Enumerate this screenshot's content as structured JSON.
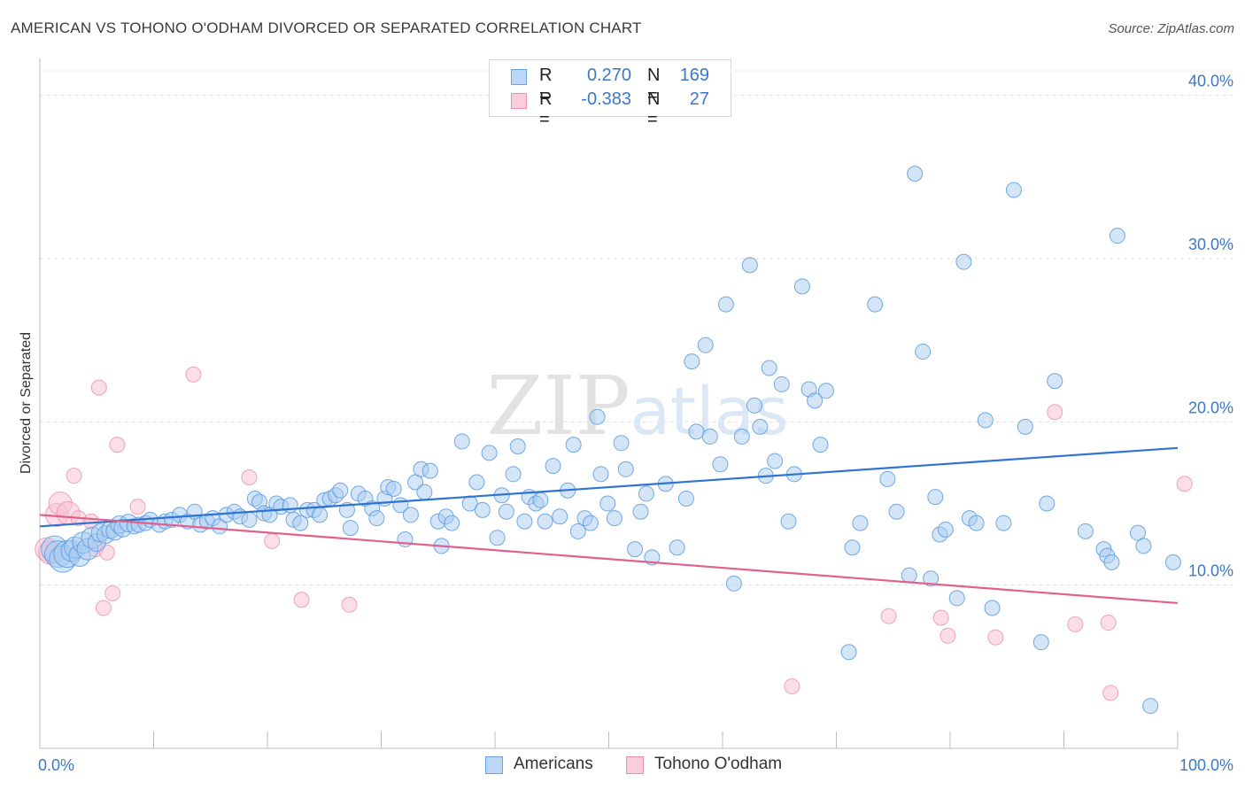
{
  "title": "AMERICAN VS TOHONO O'ODHAM DIVORCED OR SEPARATED CORRELATION CHART",
  "source": "Source: ZipAtlas.com",
  "watermark": "ZIPatlas",
  "legend": {
    "rows": [
      {
        "r_label": "R =",
        "r_value": "0.270",
        "n_label": "N =",
        "n_value": "169",
        "color": "#9ec5f0"
      },
      {
        "r_label": "R =",
        "r_value": "-0.383",
        "n_label": "N =",
        "n_value": "27",
        "color": "#f5b8cc"
      }
    ]
  },
  "bottom_legend": {
    "americans": "Americans",
    "tohono": "Tohono O'odham"
  },
  "chart_data": {
    "type": "scatter",
    "title": "AMERICAN VS TOHONO O'ODHAM DIVORCED OR SEPARATED CORRELATION CHART",
    "ylabel": "Divorced or Separated",
    "xlabel": "",
    "x_tick_labels": [
      "0.0%",
      "100.0%"
    ],
    "y_tick_labels": [
      "10.0%",
      "20.0%",
      "30.0%",
      "40.0%"
    ],
    "y_ticks": [
      10,
      20,
      30,
      40
    ],
    "xlim": [
      0,
      100
    ],
    "ylim": [
      0,
      41.5
    ],
    "grid": true,
    "legend_position": "top-center",
    "colors": {
      "americans": "#5b9be0",
      "americans_fill": "#a9cbf2",
      "americans_line": "#2e74d0",
      "tohono": "#ec8fb0",
      "tohono_fill": "#f7c3d4",
      "tohono_line": "#e0608e"
    },
    "series": [
      {
        "name": "Americans",
        "trend": [
          [
            0,
            13.6
          ],
          [
            100,
            18.4
          ]
        ],
        "points": [
          [
            1.3,
            12.2
          ],
          [
            1.6,
            11.9
          ],
          [
            2,
            11.6
          ],
          [
            2.4,
            11.9
          ],
          [
            2.8,
            12.1
          ],
          [
            3.1,
            12.3
          ],
          [
            3.5,
            11.8
          ],
          [
            3.8,
            12.6
          ],
          [
            4.2,
            12.2
          ],
          [
            4.6,
            12.9
          ],
          [
            5,
            12.6
          ],
          [
            5.3,
            13.2
          ],
          [
            5.8,
            13.1
          ],
          [
            6.2,
            13.4
          ],
          [
            6.6,
            13.3
          ],
          [
            7,
            13.7
          ],
          [
            7.3,
            13.5
          ],
          [
            7.8,
            13.8
          ],
          [
            8.3,
            13.6
          ],
          [
            8.7,
            13.7
          ],
          [
            9.3,
            13.8
          ],
          [
            9.7,
            14
          ],
          [
            10.5,
            13.7
          ],
          [
            11,
            13.9
          ],
          [
            11.6,
            14
          ],
          [
            12.3,
            14.3
          ],
          [
            13,
            13.9
          ],
          [
            13.6,
            14.5
          ],
          [
            14.1,
            13.7
          ],
          [
            14.7,
            13.9
          ],
          [
            15.2,
            14.1
          ],
          [
            15.8,
            13.6
          ],
          [
            16.4,
            14.3
          ],
          [
            17.1,
            14.5
          ],
          [
            17.6,
            14.2
          ],
          [
            18.4,
            14
          ],
          [
            18.9,
            15.3
          ],
          [
            19.3,
            15.1
          ],
          [
            19.7,
            14.4
          ],
          [
            20.2,
            14.3
          ],
          [
            20.8,
            15
          ],
          [
            21.2,
            14.8
          ],
          [
            22,
            14.9
          ],
          [
            22.3,
            14
          ],
          [
            22.9,
            13.8
          ],
          [
            23.5,
            14.6
          ],
          [
            24.1,
            14.6
          ],
          [
            24.6,
            14.3
          ],
          [
            25,
            15.2
          ],
          [
            25.5,
            15.3
          ],
          [
            26,
            15.5
          ],
          [
            26.4,
            15.8
          ],
          [
            27,
            14.6
          ],
          [
            27.3,
            13.5
          ],
          [
            28,
            15.6
          ],
          [
            28.6,
            15.3
          ],
          [
            29.2,
            14.7
          ],
          [
            29.6,
            14.1
          ],
          [
            30.3,
            15.3
          ],
          [
            30.6,
            16
          ],
          [
            31.1,
            15.9
          ],
          [
            31.7,
            14.9
          ],
          [
            32.1,
            12.8
          ],
          [
            32.6,
            14.3
          ],
          [
            33,
            16.3
          ],
          [
            33.5,
            17.1
          ],
          [
            33.8,
            15.7
          ],
          [
            34.3,
            17
          ],
          [
            35,
            13.9
          ],
          [
            35.3,
            12.4
          ],
          [
            35.7,
            14.2
          ],
          [
            36.2,
            13.8
          ],
          [
            37.1,
            18.8
          ],
          [
            37.8,
            15
          ],
          [
            38.4,
            16.3
          ],
          [
            38.9,
            14.6
          ],
          [
            39.5,
            18.1
          ],
          [
            40.2,
            12.9
          ],
          [
            40.6,
            15.5
          ],
          [
            41,
            14.5
          ],
          [
            41.6,
            16.8
          ],
          [
            42,
            18.5
          ],
          [
            42.6,
            13.9
          ],
          [
            43,
            15.4
          ],
          [
            43.6,
            15
          ],
          [
            44,
            15.2
          ],
          [
            44.4,
            13.9
          ],
          [
            45.1,
            17.3
          ],
          [
            45.7,
            14.2
          ],
          [
            46.4,
            15.8
          ],
          [
            46.9,
            18.6
          ],
          [
            47.3,
            13.3
          ],
          [
            47.9,
            14.1
          ],
          [
            48.4,
            13.8
          ],
          [
            49,
            20.3
          ],
          [
            49.3,
            16.8
          ],
          [
            49.9,
            15
          ],
          [
            50.5,
            14.1
          ],
          [
            51.1,
            18.7
          ],
          [
            51.5,
            17.1
          ],
          [
            52.3,
            12.2
          ],
          [
            52.8,
            14.5
          ],
          [
            53.3,
            15.6
          ],
          [
            53.8,
            11.7
          ],
          [
            55,
            16.2
          ],
          [
            56,
            12.3
          ],
          [
            56.8,
            15.3
          ],
          [
            57.3,
            23.7
          ],
          [
            57.7,
            19.4
          ],
          [
            58.5,
            24.7
          ],
          [
            58.9,
            19.1
          ],
          [
            59.8,
            17.4
          ],
          [
            60.3,
            27.2
          ],
          [
            61,
            10.1
          ],
          [
            61.7,
            19.1
          ],
          [
            62.4,
            29.6
          ],
          [
            62.8,
            21
          ],
          [
            63.3,
            19.7
          ],
          [
            63.8,
            16.7
          ],
          [
            64.1,
            23.3
          ],
          [
            64.6,
            17.6
          ],
          [
            65.2,
            22.3
          ],
          [
            65.8,
            13.9
          ],
          [
            66.3,
            16.8
          ],
          [
            67,
            28.3
          ],
          [
            67.6,
            22
          ],
          [
            68.1,
            21.3
          ],
          [
            68.6,
            18.6
          ],
          [
            69.1,
            21.9
          ],
          [
            71.1,
            5.9
          ],
          [
            71.4,
            12.3
          ],
          [
            72.1,
            13.8
          ],
          [
            73.4,
            27.2
          ],
          [
            74.5,
            16.5
          ],
          [
            75.3,
            14.5
          ],
          [
            76.4,
            10.6
          ],
          [
            76.9,
            35.2
          ],
          [
            77.6,
            24.3
          ],
          [
            78.3,
            10.4
          ],
          [
            78.7,
            15.4
          ],
          [
            79.1,
            13.1
          ],
          [
            79.6,
            13.4
          ],
          [
            80.6,
            9.2
          ],
          [
            81.2,
            29.8
          ],
          [
            81.7,
            14.1
          ],
          [
            82.3,
            13.8
          ],
          [
            83.1,
            20.1
          ],
          [
            83.7,
            8.6
          ],
          [
            84.7,
            13.8
          ],
          [
            85.6,
            34.2
          ],
          [
            86.6,
            19.7
          ],
          [
            88,
            6.5
          ],
          [
            88.5,
            15
          ],
          [
            89.2,
            22.5
          ],
          [
            91.9,
            13.3
          ],
          [
            93.5,
            12.2
          ],
          [
            93.8,
            11.8
          ],
          [
            94.2,
            11.4
          ],
          [
            94.7,
            31.4
          ],
          [
            96.5,
            13.2
          ],
          [
            97,
            12.4
          ],
          [
            97.6,
            2.6
          ],
          [
            99.6,
            11.4
          ]
        ]
      },
      {
        "name": "Tohono O'odham",
        "trend": [
          [
            0,
            14.3
          ],
          [
            100,
            8.9
          ]
        ],
        "points": [
          [
            0.6,
            12.2
          ],
          [
            0.9,
            12
          ],
          [
            1.5,
            14.3
          ],
          [
            1.8,
            15
          ],
          [
            2.5,
            14.4
          ],
          [
            3,
            16.7
          ],
          [
            3.4,
            14.1
          ],
          [
            4.5,
            13.9
          ],
          [
            4.9,
            12.2
          ],
          [
            5.2,
            22.1
          ],
          [
            5.6,
            8.6
          ],
          [
            5.9,
            12
          ],
          [
            6.4,
            9.5
          ],
          [
            6.8,
            18.6
          ],
          [
            8.6,
            14.8
          ],
          [
            13.5,
            22.9
          ],
          [
            18.4,
            16.6
          ],
          [
            20.4,
            12.7
          ],
          [
            23,
            9.1
          ],
          [
            27.2,
            8.8
          ],
          [
            66.1,
            3.8
          ],
          [
            74.6,
            8.1
          ],
          [
            79.2,
            8
          ],
          [
            79.8,
            6.9
          ],
          [
            84,
            6.8
          ],
          [
            89.2,
            20.6
          ],
          [
            91,
            7.6
          ],
          [
            93.9,
            7.7
          ],
          [
            94.1,
            3.4
          ],
          [
            100.6,
            16.2
          ]
        ]
      }
    ]
  }
}
